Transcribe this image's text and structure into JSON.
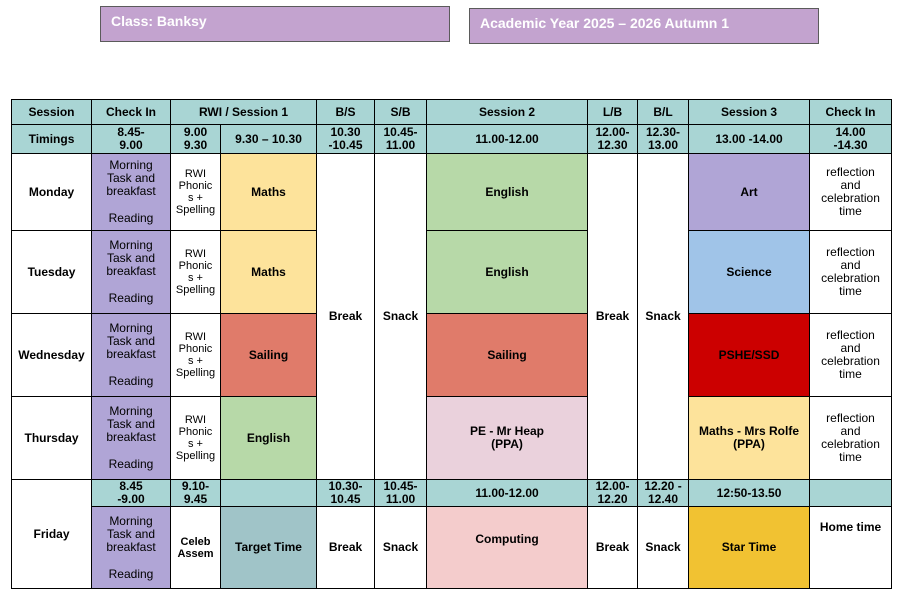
{
  "header": {
    "class_label": "Class: Banksy",
    "year_label": "Academic Year 2025 – 2026 Autumn 1"
  },
  "columns": {
    "session": "Session",
    "check_in": "Check In",
    "rwi": "RWI / Session 1",
    "bs": "B/S",
    "sb": "S/B",
    "session2": "Session 2",
    "lb": "L/B",
    "bl": "B/L",
    "session3": "Session 3",
    "check_in_end": "Check In"
  },
  "timings": {
    "label": "Timings",
    "check_in": "8.45-\n9.00",
    "rwi": "9.00\n9.30",
    "session1": "9.30 – 10.30",
    "bs": "10.30\n-10.45",
    "sb": "10.45-\n11.00",
    "session2": "11.00-12.00",
    "lb": "12.00-\n12.30",
    "bl": "12.30-\n13.00",
    "session3": "13.00 -14.00",
    "check_in_end": "14.00\n-14.30"
  },
  "common": {
    "morning_task": "Morning\nTask and\nbreakfast",
    "reading": "Reading",
    "rwi_phonics": "RWI\nPhonic\ns +\nSpelling",
    "break": "Break",
    "snack": "Snack",
    "reflection": "reflection\nand\ncelebration\ntime"
  },
  "days": {
    "monday": {
      "name": "Monday",
      "session1": "Maths",
      "session2": "English",
      "session3": "Art"
    },
    "tuesday": {
      "name": "Tuesday",
      "session1": "Maths",
      "session2": "English",
      "session3": "Science"
    },
    "wednesday": {
      "name": "Wednesday",
      "session1": "Sailing",
      "session2": "Sailing",
      "session3": "PSHE/SSD"
    },
    "thursday": {
      "name": "Thursday",
      "session1": "English",
      "session2": "PE - Mr Heap\n(PPA)",
      "session3": "Maths - Mrs Rolfe\n(PPA)"
    }
  },
  "friday": {
    "name": "Friday",
    "timings": {
      "check_in": "8.45\n-9.00",
      "rwi": "9.10-\n9.45",
      "bs": "10.30-\n10.45",
      "sb": "10.45-\n11.00",
      "session2": "11.00-12.00",
      "lb": "12.00-\n12.20",
      "bl": "12.20 -\n12.40",
      "session3": "12:50-13.50"
    },
    "celeb": "Celeb\nAssem",
    "session1": "Target Time",
    "session2": "Computing",
    "session3": "Star Time",
    "end": "Home time"
  },
  "colors": {
    "title_box": "#c3a3cf",
    "timings_row": "#a9d5d4",
    "check_in": "#b0a5d6",
    "maths": "#fde39b",
    "english": "#b7d9a8",
    "sailing": "#e07b6a",
    "pshe": "#cc0000",
    "science": "#a0c4e8",
    "art": "#b0a5d6",
    "pe": "#ead1dc",
    "computing": "#f4cccc",
    "target_time": "#a0c4c8",
    "star_time": "#f1c232"
  }
}
